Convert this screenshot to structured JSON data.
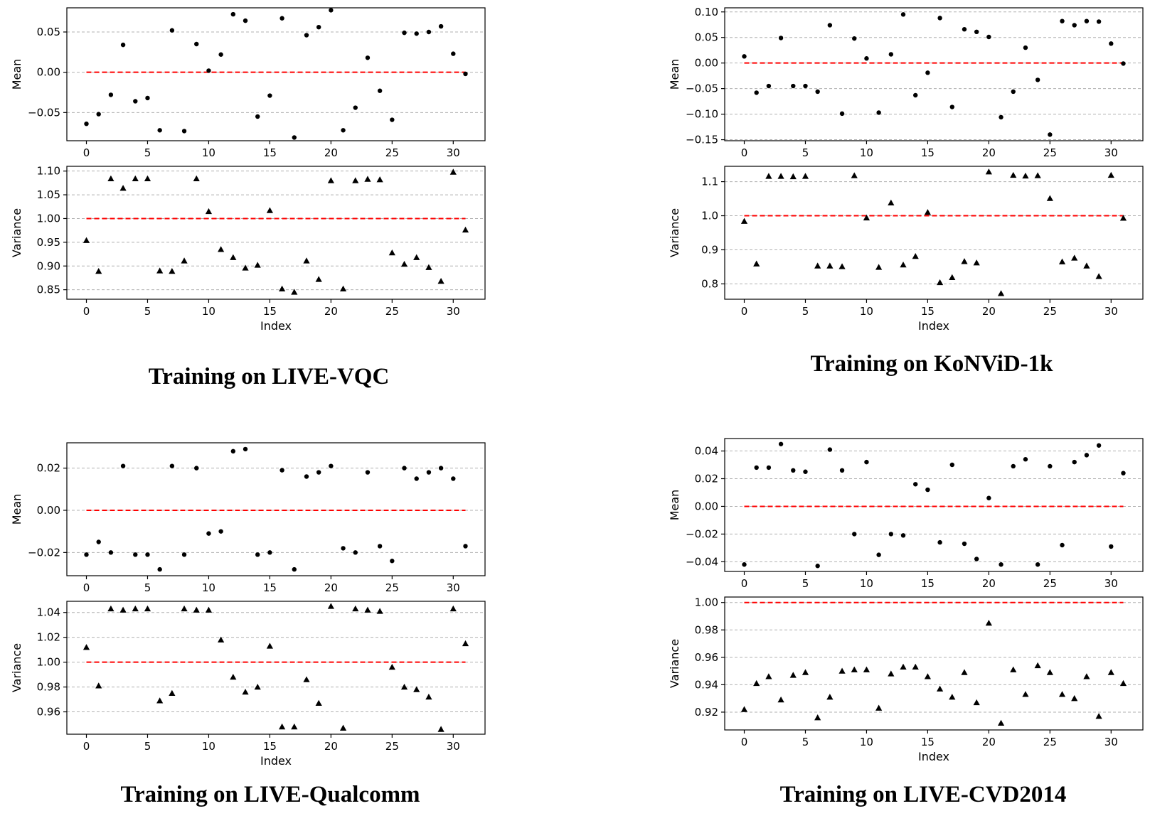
{
  "captions": [
    "Training on LIVE-VQC",
    "Training on KoNViD-1k",
    "Training on LIVE-Qualcomm",
    "Training on LIVE-CVD2014"
  ],
  "colors": {
    "points": "#000000",
    "reference": "#ff0000",
    "grid": "#b0b0b0",
    "axes": "#000000"
  },
  "chart_data": [
    {
      "type": "scatter",
      "panel": "Training on LIVE-VQC (mean)",
      "marker": "circle",
      "xlabel": "",
      "ylabel": "Mean",
      "xlim": [
        -1.6,
        32.6
      ],
      "ylim": [
        -0.085,
        0.08
      ],
      "xticks": [
        0,
        5,
        10,
        15,
        20,
        25,
        30
      ],
      "yticks": [
        -0.05,
        0.0,
        0.05
      ],
      "ytick_labels": [
        "−0.05",
        "0.00",
        "0.05"
      ],
      "grid": "horizontal dashed",
      "reference_line": 0.0,
      "x": [
        0,
        1,
        2,
        3,
        4,
        5,
        6,
        7,
        8,
        9,
        10,
        11,
        12,
        13,
        14,
        15,
        16,
        17,
        18,
        19,
        20,
        21,
        22,
        23,
        24,
        25,
        26,
        27,
        28,
        29,
        30,
        31
      ],
      "y": [
        -0.064,
        -0.052,
        -0.028,
        0.034,
        -0.036,
        -0.032,
        -0.072,
        0.052,
        -0.073,
        0.035,
        0.002,
        0.022,
        0.072,
        0.064,
        -0.055,
        -0.029,
        0.067,
        -0.081,
        0.046,
        0.056,
        0.077,
        -0.072,
        -0.044,
        0.018,
        -0.023,
        -0.059,
        0.049,
        0.048,
        0.05,
        0.057,
        0.023,
        -0.002
      ]
    },
    {
      "type": "scatter",
      "panel": "Training on LIVE-VQC (variance)",
      "marker": "triangle",
      "xlabel": "Index",
      "ylabel": "Variance",
      "xlim": [
        -1.6,
        32.6
      ],
      "ylim": [
        0.83,
        1.11
      ],
      "xticks": [
        0,
        5,
        10,
        15,
        20,
        25,
        30
      ],
      "yticks": [
        0.85,
        0.9,
        0.95,
        1.0,
        1.05,
        1.1
      ],
      "ytick_labels": [
        "0.85",
        "0.90",
        "0.95",
        "1.00",
        "1.05",
        "1.10"
      ],
      "grid": "horizontal dashed",
      "reference_line": 1.0,
      "x": [
        0,
        1,
        2,
        3,
        4,
        5,
        6,
        7,
        8,
        9,
        10,
        11,
        12,
        13,
        14,
        15,
        16,
        17,
        18,
        19,
        20,
        21,
        22,
        23,
        24,
        25,
        26,
        27,
        28,
        29,
        30,
        31
      ],
      "y": [
        0.954,
        0.889,
        1.084,
        1.064,
        1.084,
        1.084,
        0.89,
        0.889,
        0.911,
        1.084,
        1.015,
        0.935,
        0.918,
        0.896,
        0.902,
        1.017,
        0.852,
        0.845,
        0.911,
        0.872,
        1.08,
        0.852,
        1.08,
        1.083,
        1.082,
        0.928,
        0.904,
        0.918,
        0.897,
        0.868,
        1.098,
        0.976
      ]
    },
    {
      "type": "scatter",
      "panel": "Training on KoNViD-1k (mean)",
      "marker": "circle",
      "xlabel": "",
      "ylabel": "Mean",
      "xlim": [
        -1.6,
        32.6
      ],
      "ylim": [
        -0.152,
        0.108
      ],
      "xticks": [
        0,
        5,
        10,
        15,
        20,
        25,
        30
      ],
      "yticks": [
        -0.15,
        -0.1,
        -0.05,
        0.0,
        0.05,
        0.1
      ],
      "ytick_labels": [
        "−0.15",
        "−0.10",
        "−0.05",
        "0.00",
        "0.05",
        "0.10"
      ],
      "grid": "horizontal dashed",
      "reference_line": 0.0,
      "x": [
        0,
        1,
        2,
        3,
        4,
        5,
        6,
        7,
        8,
        9,
        10,
        11,
        12,
        13,
        14,
        15,
        16,
        17,
        18,
        19,
        20,
        21,
        22,
        23,
        24,
        25,
        26,
        27,
        28,
        29,
        30,
        31
      ],
      "y": [
        0.013,
        -0.058,
        -0.045,
        0.049,
        -0.045,
        -0.045,
        -0.056,
        0.074,
        -0.099,
        0.048,
        0.009,
        -0.097,
        0.017,
        0.095,
        -0.063,
        -0.019,
        0.088,
        -0.086,
        0.066,
        0.061,
        0.051,
        -0.106,
        -0.056,
        0.03,
        -0.033,
        -0.14,
        0.082,
        0.074,
        0.082,
        0.081,
        0.038,
        -0.001
      ]
    },
    {
      "type": "scatter",
      "panel": "Training on KoNViD-1k (variance)",
      "marker": "triangle",
      "xlabel": "Index",
      "ylabel": "Variance",
      "xlim": [
        -1.6,
        32.6
      ],
      "ylim": [
        0.755,
        1.145
      ],
      "xticks": [
        0,
        5,
        10,
        15,
        20,
        25,
        30
      ],
      "yticks": [
        0.8,
        0.9,
        1.0,
        1.1
      ],
      "ytick_labels": [
        "0.8",
        "0.9",
        "1.0",
        "1.1"
      ],
      "grid": "horizontal dashed",
      "reference_line": 1.0,
      "x": [
        0,
        1,
        2,
        3,
        4,
        5,
        6,
        7,
        8,
        9,
        10,
        11,
        12,
        13,
        14,
        15,
        16,
        17,
        18,
        19,
        20,
        21,
        22,
        23,
        24,
        25,
        26,
        27,
        28,
        29,
        30,
        31
      ],
      "y": [
        0.984,
        0.859,
        1.116,
        1.116,
        1.115,
        1.116,
        0.853,
        0.853,
        0.851,
        1.118,
        0.994,
        0.849,
        1.038,
        0.856,
        0.881,
        1.01,
        0.804,
        0.819,
        0.866,
        0.862,
        1.129,
        0.772,
        1.119,
        1.117,
        1.118,
        1.051,
        0.865,
        0.876,
        0.853,
        0.822,
        1.119,
        0.993
      ]
    },
    {
      "type": "scatter",
      "panel": "Training on LIVE-Qualcomm (mean)",
      "marker": "circle",
      "xlabel": "",
      "ylabel": "Mean",
      "xlim": [
        -1.6,
        32.6
      ],
      "ylim": [
        -0.031,
        0.032
      ],
      "xticks": [
        0,
        5,
        10,
        15,
        20,
        25,
        30
      ],
      "yticks": [
        -0.02,
        0.0,
        0.02
      ],
      "ytick_labels": [
        "−0.02",
        "0.00",
        "0.02"
      ],
      "grid": "horizontal dashed",
      "reference_line": 0.0,
      "x": [
        0,
        1,
        2,
        3,
        4,
        5,
        6,
        7,
        8,
        9,
        10,
        11,
        12,
        13,
        14,
        15,
        16,
        17,
        18,
        19,
        20,
        21,
        22,
        23,
        24,
        25,
        26,
        27,
        28,
        29,
        30,
        31
      ],
      "y": [
        -0.021,
        -0.015,
        -0.02,
        0.021,
        -0.021,
        -0.021,
        -0.028,
        0.021,
        -0.021,
        0.02,
        -0.011,
        -0.01,
        0.028,
        0.029,
        -0.021,
        -0.02,
        0.019,
        -0.028,
        0.016,
        0.018,
        0.021,
        -0.018,
        -0.02,
        0.018,
        -0.017,
        -0.024,
        0.02,
        0.015,
        0.018,
        0.02,
        0.015,
        -0.017
      ]
    },
    {
      "type": "scatter",
      "panel": "Training on LIVE-Qualcomm (variance)",
      "marker": "triangle",
      "xlabel": "Index",
      "ylabel": "Variance",
      "xlim": [
        -1.6,
        32.6
      ],
      "ylim": [
        0.942,
        1.049
      ],
      "xticks": [
        0,
        5,
        10,
        15,
        20,
        25,
        30
      ],
      "yticks": [
        0.96,
        0.98,
        1.0,
        1.02,
        1.04
      ],
      "ytick_labels": [
        "0.96",
        "0.98",
        "1.00",
        "1.02",
        "1.04"
      ],
      "grid": "horizontal dashed",
      "reference_line": 1.0,
      "x": [
        0,
        1,
        2,
        3,
        4,
        5,
        6,
        7,
        8,
        9,
        10,
        11,
        12,
        13,
        14,
        15,
        16,
        17,
        18,
        19,
        20,
        21,
        22,
        23,
        24,
        25,
        26,
        27,
        28,
        29,
        30,
        31
      ],
      "y": [
        1.012,
        0.981,
        1.043,
        1.042,
        1.043,
        1.043,
        0.969,
        0.975,
        1.043,
        1.042,
        1.042,
        1.018,
        0.988,
        0.976,
        0.98,
        1.013,
        0.948,
        0.948,
        0.986,
        0.967,
        1.045,
        0.947,
        1.043,
        1.042,
        1.041,
        0.996,
        0.98,
        0.978,
        0.972,
        0.946,
        1.043,
        1.015
      ]
    },
    {
      "type": "scatter",
      "panel": "Training on LIVE-CVD2014 (mean)",
      "marker": "circle",
      "xlabel": "",
      "ylabel": "Mean",
      "xlim": [
        -1.6,
        32.6
      ],
      "ylim": [
        -0.047,
        0.049
      ],
      "xticks": [
        0,
        5,
        10,
        15,
        20,
        25,
        30
      ],
      "yticks": [
        -0.04,
        -0.02,
        0.0,
        0.02,
        0.04
      ],
      "ytick_labels": [
        "−0.04",
        "−0.02",
        "0.00",
        "0.02",
        "0.04"
      ],
      "grid": "horizontal dashed",
      "reference_line": 0.0,
      "x": [
        0,
        1,
        2,
        3,
        4,
        5,
        6,
        7,
        8,
        9,
        10,
        11,
        12,
        13,
        14,
        15,
        16,
        17,
        18,
        19,
        20,
        21,
        22,
        23,
        24,
        25,
        26,
        27,
        28,
        29,
        30,
        31
      ],
      "y": [
        -0.042,
        0.028,
        0.028,
        0.045,
        0.026,
        0.025,
        -0.043,
        0.041,
        0.026,
        -0.02,
        0.032,
        -0.035,
        -0.02,
        -0.021,
        0.016,
        0.012,
        -0.026,
        0.03,
        -0.027,
        -0.038,
        0.006,
        -0.042,
        0.029,
        0.034,
        -0.042,
        0.029,
        -0.028,
        0.032,
        0.037,
        0.044,
        -0.029,
        0.024
      ]
    },
    {
      "type": "scatter",
      "panel": "Training on LIVE-CVD2014 (variance)",
      "marker": "triangle",
      "xlabel": "Index",
      "ylabel": "Variance",
      "xlim": [
        -1.6,
        32.6
      ],
      "ylim": [
        0.907,
        1.004
      ],
      "xticks": [
        0,
        5,
        10,
        15,
        20,
        25,
        30
      ],
      "yticks": [
        0.92,
        0.94,
        0.96,
        0.98,
        1.0
      ],
      "ytick_labels": [
        "0.92",
        "0.94",
        "0.96",
        "0.98",
        "1.00"
      ],
      "grid": "horizontal dashed",
      "reference_line": 1.0,
      "x": [
        0,
        1,
        2,
        3,
        4,
        5,
        6,
        7,
        8,
        9,
        10,
        11,
        12,
        13,
        14,
        15,
        16,
        17,
        18,
        19,
        20,
        21,
        22,
        23,
        24,
        25,
        26,
        27,
        28,
        29,
        30,
        31
      ],
      "y": [
        0.922,
        0.941,
        0.946,
        0.929,
        0.947,
        0.949,
        0.916,
        0.931,
        0.95,
        0.951,
        0.951,
        0.923,
        0.948,
        0.953,
        0.953,
        0.946,
        0.937,
        0.931,
        0.949,
        0.927,
        0.985,
        0.912,
        0.951,
        0.933,
        0.954,
        0.949,
        0.933,
        0.93,
        0.946,
        0.917,
        0.949,
        0.941
      ]
    }
  ]
}
